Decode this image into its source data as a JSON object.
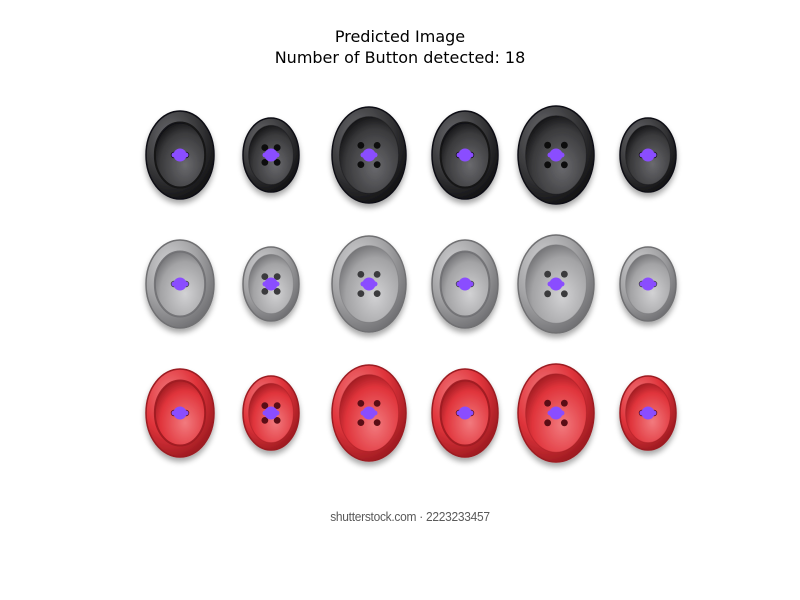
{
  "figure": {
    "title": "Predicted Image",
    "subtitle": "Number of Button detected: 18"
  },
  "image": {
    "watermark": "shutterstock.com · 2223233457",
    "rows": [
      {
        "color_name": "black",
        "base": "#3a3a3c",
        "light": "#6a6a6e",
        "dark": "#111113"
      },
      {
        "color_name": "gray",
        "base": "#a3a3a5",
        "light": "#d2d2d4",
        "dark": "#6f6f72"
      },
      {
        "color_name": "red",
        "base": "#e0343b",
        "light": "#f27a7e",
        "dark": "#9c1a20"
      }
    ],
    "buttons_per_row": 6,
    "detection_marker_color": "#8a4dff",
    "detected_count": 18
  }
}
